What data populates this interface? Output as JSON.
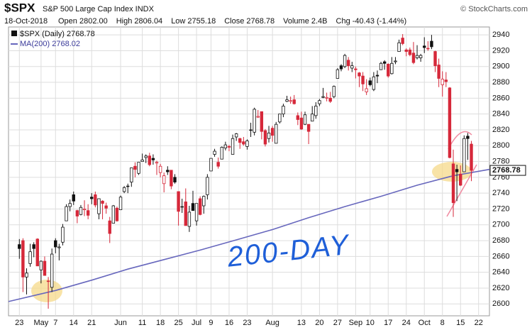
{
  "header": {
    "symbol": "$SPX",
    "name": "S&P 500 Large Cap Index INDX",
    "source": "© StockCharts.com",
    "date": "18-Oct-2018",
    "stats": [
      "Open 2802.00",
      "High 2806.04",
      "Low 2755.18",
      "Close 2768.78",
      "Volume 2.4B",
      "Chg -40.43 (-1.44%)"
    ]
  },
  "chart_data": {
    "type": "candlestick",
    "legend": [
      "$SPX (Daily) 2768.78",
      "MA(200) 2768.02"
    ],
    "annotation": "200-DAY",
    "up_color": "#111111",
    "down_color": "#d6283a",
    "grid": true,
    "ylim": [
      2585,
      2950
    ],
    "yticks": [
      2600,
      2620,
      2640,
      2660,
      2680,
      2700,
      2720,
      2740,
      2760,
      2780,
      2800,
      2820,
      2840,
      2860,
      2880,
      2900,
      2920,
      2940
    ],
    "xlim": [
      -3,
      130
    ],
    "xticks": [
      {
        "value": 0,
        "label": "23"
      },
      {
        "value": 6,
        "label": "May"
      },
      {
        "value": 10,
        "label": "7"
      },
      {
        "value": 15,
        "label": "14"
      },
      {
        "value": 20,
        "label": "21"
      },
      {
        "value": 28,
        "label": "Jun"
      },
      {
        "value": 34,
        "label": "11"
      },
      {
        "value": 39,
        "label": "18"
      },
      {
        "value": 44,
        "label": "25"
      },
      {
        "value": 49,
        "label": "Jul"
      },
      {
        "value": 53,
        "label": "9"
      },
      {
        "value": 58,
        "label": "16"
      },
      {
        "value": 63,
        "label": "23"
      },
      {
        "value": 70,
        "label": "Aug"
      },
      {
        "value": 78,
        "label": "13"
      },
      {
        "value": 83,
        "label": "20"
      },
      {
        "value": 88,
        "label": "27"
      },
      {
        "value": 93,
        "label": "Sep"
      },
      {
        "value": 97,
        "label": "10"
      },
      {
        "value": 102,
        "label": "17"
      },
      {
        "value": 107,
        "label": "24"
      },
      {
        "value": 112,
        "label": "Oct"
      },
      {
        "value": 117,
        "label": "8"
      },
      {
        "value": 122,
        "label": "15"
      },
      {
        "value": 127,
        "label": "22"
      }
    ],
    "ohlc": [
      [
        2675,
        2682,
        2657,
        2670
      ],
      [
        2680,
        2683,
        2615,
        2634
      ],
      [
        2634,
        2645,
        2612,
        2639
      ],
      [
        2651,
        2676,
        2647,
        2666
      ],
      [
        2675,
        2678,
        2659,
        2670
      ],
      [
        2682,
        2683,
        2648,
        2648
      ],
      [
        2643,
        2655,
        2626,
        2654
      ],
      [
        2654,
        2660,
        2636,
        2636
      ],
      [
        2629,
        2634,
        2594,
        2629
      ],
      [
        2621,
        2670,
        2615,
        2663
      ],
      [
        2680,
        2683,
        2664,
        2672
      ],
      [
        2671,
        2676,
        2655,
        2672
      ],
      [
        2678,
        2701,
        2674,
        2697
      ],
      [
        2705,
        2726,
        2705,
        2723
      ],
      [
        2723,
        2732,
        2717,
        2727
      ],
      [
        2738,
        2742,
        2725,
        2730
      ],
      [
        2718,
        2719,
        2702,
        2711
      ],
      [
        2713,
        2725,
        2712,
        2722
      ],
      [
        2719,
        2731,
        2711,
        2720
      ],
      [
        2718,
        2726,
        2707,
        2712
      ],
      [
        2735,
        2740,
        2726,
        2733
      ],
      [
        2738,
        2742,
        2722,
        2725
      ],
      [
        2714,
        2733,
        2707,
        2733
      ],
      [
        2730,
        2731,
        2707,
        2727
      ],
      [
        2724,
        2728,
        2714,
        2721
      ],
      [
        2705,
        2710,
        2677,
        2689
      ],
      [
        2702,
        2725,
        2702,
        2724
      ],
      [
        2721,
        2723,
        2704,
        2705
      ],
      [
        2719,
        2737,
        2719,
        2735
      ],
      [
        2742,
        2749,
        2740,
        2747
      ],
      [
        2749,
        2752,
        2740,
        2749
      ],
      [
        2754,
        2772,
        2748,
        2772
      ],
      [
        2774,
        2779,
        2760,
        2770
      ],
      [
        2765,
        2779,
        2763,
        2779
      ],
      [
        2780,
        2790,
        2780,
        2782
      ],
      [
        2785,
        2789,
        2778,
        2787
      ],
      [
        2787,
        2791,
        2774,
        2776
      ],
      [
        2784,
        2789,
        2776,
        2782
      ],
      [
        2778,
        2781,
        2763,
        2779
      ],
      [
        2766,
        2777,
        2760,
        2774
      ],
      [
        2752,
        2766,
        2741,
        2762
      ],
      [
        2769,
        2774,
        2763,
        2767
      ],
      [
        2769,
        2769,
        2745,
        2749
      ],
      [
        2760,
        2764,
        2752,
        2754
      ],
      [
        2742,
        2742,
        2699,
        2717
      ],
      [
        2723,
        2733,
        2715,
        2723
      ],
      [
        2729,
        2746,
        2699,
        2699
      ],
      [
        2698,
        2724,
        2691,
        2716
      ],
      [
        2727,
        2743,
        2718,
        2718
      ],
      [
        2705,
        2727,
        2699,
        2727
      ],
      [
        2733,
        2736,
        2712,
        2713
      ],
      [
        2724,
        2737,
        2714,
        2736
      ],
      [
        2738,
        2764,
        2732,
        2760
      ],
      [
        2768,
        2784,
        2768,
        2784
      ],
      [
        2789,
        2796,
        2786,
        2793
      ],
      [
        2779,
        2785,
        2771,
        2774
      ],
      [
        2783,
        2799,
        2783,
        2798
      ],
      [
        2797,
        2805,
        2794,
        2801
      ],
      [
        2799,
        2801,
        2793,
        2798
      ],
      [
        2789,
        2814,
        2789,
        2809
      ],
      [
        2811,
        2816,
        2806,
        2815
      ],
      [
        2809,
        2810,
        2796,
        2804
      ],
      [
        2805,
        2811,
        2800,
        2802
      ],
      [
        2799,
        2808,
        2795,
        2806
      ],
      [
        2820,
        2829,
        2811,
        2820
      ],
      [
        2817,
        2848,
        2813,
        2846
      ],
      [
        2836,
        2845,
        2835,
        2837
      ],
      [
        2843,
        2843,
        2808,
        2818
      ],
      [
        2819,
        2821,
        2799,
        2802
      ],
      [
        2809,
        2825,
        2804,
        2816
      ],
      [
        2822,
        2825,
        2805,
        2813
      ],
      [
        2803,
        2830,
        2803,
        2827
      ],
      [
        2830,
        2840,
        2828,
        2840
      ],
      [
        2840,
        2853,
        2836,
        2850
      ],
      [
        2856,
        2863,
        2855,
        2858
      ],
      [
        2856,
        2862,
        2853,
        2857
      ],
      [
        2858,
        2864,
        2852,
        2853
      ],
      [
        2838,
        2842,
        2826,
        2833
      ],
      [
        2835,
        2843,
        2820,
        2821
      ],
      [
        2827,
        2843,
        2826,
        2839
      ],
      [
        2827,
        2827,
        2802,
        2818
      ],
      [
        2831,
        2850,
        2831,
        2840
      ],
      [
        2838,
        2855,
        2834,
        2850
      ],
      [
        2853,
        2859,
        2850,
        2857
      ],
      [
        2861,
        2873,
        2860,
        2862
      ],
      [
        2860,
        2867,
        2856,
        2861
      ],
      [
        2860,
        2868,
        2854,
        2856
      ],
      [
        2862,
        2876,
        2860,
        2875
      ],
      [
        2885,
        2898,
        2885,
        2896
      ],
      [
        2901,
        2903,
        2894,
        2897
      ],
      [
        2900,
        2916,
        2898,
        2914
      ],
      [
        2908,
        2912,
        2895,
        2901
      ],
      [
        2898,
        2906,
        2893,
        2901
      ],
      [
        2897,
        2900,
        2885,
        2896
      ],
      [
        2892,
        2893,
        2874,
        2888
      ],
      [
        2888,
        2893,
        2869,
        2878
      ],
      [
        2868,
        2884,
        2864,
        2872
      ],
      [
        2882,
        2886,
        2875,
        2877
      ],
      [
        2871,
        2893,
        2869,
        2887
      ],
      [
        2889,
        2895,
        2879,
        2888
      ],
      [
        2896,
        2906,
        2896,
        2904
      ],
      [
        2906,
        2908,
        2896,
        2904
      ],
      [
        2903,
        2904,
        2886,
        2888
      ],
      [
        2891,
        2912,
        2890,
        2904
      ],
      [
        2906,
        2912,
        2903,
        2907
      ],
      [
        2919,
        2934,
        2919,
        2930
      ],
      [
        2936,
        2941,
        2927,
        2929
      ],
      [
        2921,
        2923,
        2913,
        2919
      ],
      [
        2921,
        2924,
        2913,
        2915
      ],
      [
        2917,
        2931,
        2903,
        2905
      ],
      [
        2911,
        2927,
        2909,
        2914
      ],
      [
        2911,
        2916,
        2906,
        2914
      ],
      [
        2926,
        2937,
        2917,
        2924
      ],
      [
        2923,
        2932,
        2920,
        2923
      ],
      [
        2932,
        2940,
        2922,
        2925
      ],
      [
        2919,
        2920,
        2893,
        2901
      ],
      [
        2902,
        2910,
        2874,
        2885
      ],
      [
        2877,
        2894,
        2862,
        2884
      ],
      [
        2883,
        2893,
        2874,
        2881
      ],
      [
        2873,
        2874,
        2784,
        2785
      ],
      [
        2777,
        2795,
        2710,
        2728
      ],
      [
        2770,
        2776,
        2730,
        2767
      ],
      [
        2764,
        2775,
        2749,
        2750
      ],
      [
        2767,
        2813,
        2767,
        2809
      ],
      [
        2812,
        2816,
        2782,
        2809
      ],
      [
        2802.0,
        2806.04,
        2755.18,
        2768.78
      ]
    ],
    "ma": {
      "color": "#6767bd",
      "x": [
        -3,
        10,
        20,
        30,
        40,
        50,
        60,
        70,
        80,
        90,
        100,
        110,
        120,
        130
      ],
      "values": [
        2603,
        2617,
        2630,
        2644,
        2656,
        2668,
        2681,
        2694,
        2709,
        2723,
        2736,
        2750,
        2762,
        2770
      ]
    }
  }
}
